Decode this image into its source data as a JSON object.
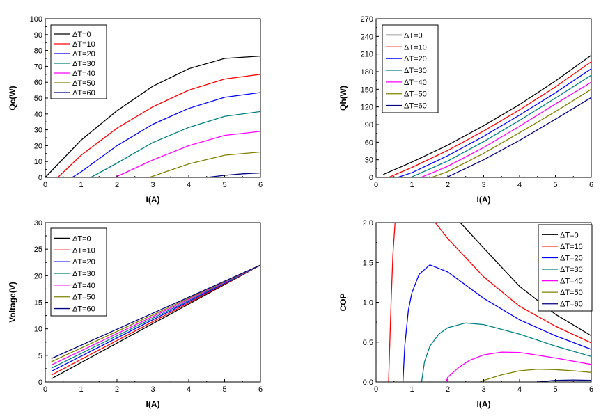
{
  "chart_data": [
    {
      "type": "line",
      "id": "qc",
      "xlabel": "I(A)",
      "ylabel": "Qc(W)",
      "xlim": [
        0,
        6
      ],
      "ylim": [
        0,
        100
      ],
      "xticks": [
        0,
        1,
        2,
        3,
        4,
        5,
        6
      ],
      "yticks": [
        0,
        10,
        20,
        30,
        40,
        50,
        60,
        70,
        80,
        90,
        100
      ],
      "legend_position": "top-left",
      "series": [
        {
          "name": "ΔT=0",
          "color": "#000000",
          "x": [
            0,
            1,
            2,
            3,
            4,
            5,
            6
          ],
          "y": [
            0,
            23.5,
            42,
            57.5,
            68.5,
            75,
            76.5
          ]
        },
        {
          "name": "ΔT=10",
          "color": "#ff0000",
          "x": [
            0.35,
            1,
            2,
            3,
            4,
            5,
            6
          ],
          "y": [
            0,
            14,
            31,
            44.5,
            55,
            62,
            65
          ]
        },
        {
          "name": "ΔT=20",
          "color": "#0000ff",
          "x": [
            0.75,
            1,
            2,
            3,
            4,
            5,
            6
          ],
          "y": [
            0,
            3.5,
            20,
            33.5,
            43.5,
            50.5,
            53.5
          ]
        },
        {
          "name": "ΔT=30",
          "color": "#008080",
          "x": [
            1.27,
            2,
            3,
            4,
            5,
            6
          ],
          "y": [
            0,
            9,
            22,
            31.5,
            38.5,
            41.5
          ]
        },
        {
          "name": "ΔT=40",
          "color": "#ff00ff",
          "x": [
            1.95,
            2,
            3,
            4,
            5,
            6
          ],
          "y": [
            0,
            0.6,
            11,
            20,
            26.5,
            29
          ]
        },
        {
          "name": "ΔT=50",
          "color": "#808000",
          "x": [
            2.9,
            3,
            4,
            5,
            6
          ],
          "y": [
            0,
            0.8,
            8.5,
            14,
            16
          ]
        },
        {
          "name": "ΔT=60",
          "color": "#000080",
          "x": [
            4.5,
            5,
            5.5,
            6
          ],
          "y": [
            0,
            1.3,
            2.3,
            2.8
          ]
        }
      ]
    },
    {
      "type": "line",
      "id": "qh",
      "xlabel": "I(A)",
      "ylabel": "Qh(W)",
      "xlim": [
        0,
        6
      ],
      "ylim": [
        0,
        270
      ],
      "xticks": [
        0,
        1,
        2,
        3,
        4,
        5,
        6
      ],
      "yticks": [
        0,
        30,
        60,
        90,
        120,
        150,
        180,
        210,
        240,
        270
      ],
      "legend_position": "top-left",
      "series": [
        {
          "name": "ΔT=0",
          "color": "#000000",
          "x": [
            0.2,
            1,
            2,
            3,
            4,
            5,
            6
          ],
          "y": [
            5,
            26,
            55,
            88,
            124,
            164,
            208
          ]
        },
        {
          "name": "ΔT=10",
          "color": "#ff0000",
          "x": [
            0.35,
            1,
            2,
            3,
            4,
            5,
            6
          ],
          "y": [
            0,
            17,
            46,
            79,
            115,
            154,
            197
          ]
        },
        {
          "name": "ΔT=20",
          "color": "#0000ff",
          "x": [
            0.6,
            1,
            2,
            3,
            4,
            5,
            6
          ],
          "y": [
            0,
            8,
            37,
            70,
            106,
            144,
            185
          ]
        },
        {
          "name": "ΔT=30",
          "color": "#008080",
          "x": [
            0.95,
            1,
            2,
            3,
            4,
            5,
            6
          ],
          "y": [
            0,
            1,
            28,
            61,
            97,
            135,
            174
          ]
        },
        {
          "name": "ΔT=40",
          "color": "#ff00ff",
          "x": [
            1.25,
            2,
            3,
            4,
            5,
            6
          ],
          "y": [
            0,
            19,
            51,
            87,
            125,
            162
          ]
        },
        {
          "name": "ΔT=50",
          "color": "#808000",
          "x": [
            1.55,
            2,
            3,
            4,
            5,
            6
          ],
          "y": [
            0,
            10,
            41,
            76,
            112,
            150
          ]
        },
        {
          "name": "ΔT=60",
          "color": "#000080",
          "x": [
            1.95,
            2,
            3,
            4,
            5,
            6
          ],
          "y": [
            0,
            1,
            30,
            63,
            99,
            136
          ]
        }
      ]
    },
    {
      "type": "line",
      "id": "voltage",
      "xlabel": "I(A)",
      "ylabel": "Voltage(V)",
      "xlim": [
        0,
        6
      ],
      "ylim": [
        0,
        30
      ],
      "xticks": [
        0,
        1,
        2,
        3,
        4,
        5,
        6
      ],
      "yticks": [
        0,
        5,
        10,
        15,
        20,
        25,
        30
      ],
      "legend_position": "top-left",
      "series": [
        {
          "name": "ΔT=0",
          "color": "#000000",
          "x": [
            0.17,
            6
          ],
          "y": [
            0.6,
            22
          ]
        },
        {
          "name": "ΔT=10",
          "color": "#ff0000",
          "x": [
            0.17,
            6
          ],
          "y": [
            1.3,
            22
          ]
        },
        {
          "name": "ΔT=20",
          "color": "#0000ff",
          "x": [
            0.17,
            6
          ],
          "y": [
            2.0,
            22
          ]
        },
        {
          "name": "ΔT=30",
          "color": "#008080",
          "x": [
            0.17,
            6
          ],
          "y": [
            2.6,
            22
          ]
        },
        {
          "name": "ΔT=40",
          "color": "#ff00ff",
          "x": [
            0.17,
            6
          ],
          "y": [
            3.2,
            22
          ]
        },
        {
          "name": "ΔT=50",
          "color": "#808000",
          "x": [
            0.17,
            6
          ],
          "y": [
            3.8,
            22
          ]
        },
        {
          "name": "ΔT=60",
          "color": "#000080",
          "x": [
            0.17,
            6
          ],
          "y": [
            4.4,
            22
          ]
        }
      ]
    },
    {
      "type": "line",
      "id": "cop",
      "xlabel": "I(A)",
      "ylabel": "COP",
      "xlim": [
        0,
        6
      ],
      "ylim": [
        0,
        2.0
      ],
      "xticks": [
        0,
        1,
        2,
        3,
        4,
        5,
        6
      ],
      "yticks": [
        0.0,
        0.5,
        1.0,
        1.5,
        2.0
      ],
      "legend_position": "top-right",
      "series": [
        {
          "name": "ΔT=0",
          "color": "#000000",
          "x": [
            2.35,
            3,
            4,
            5,
            6
          ],
          "y": [
            2.0,
            1.68,
            1.2,
            0.85,
            0.58
          ]
        },
        {
          "name": "ΔT=10",
          "color": "#ff0000",
          "x": [
            0.35,
            0.38,
            0.42,
            0.47,
            0.53
          ],
          "y": [
            0,
            0.45,
            1.0,
            1.6,
            2.0
          ]
        },
        {
          "name": "ΔT=10",
          "color": "#ff0000",
          "x": [
            1.65,
            2,
            3,
            4,
            5,
            6
          ],
          "y": [
            2.0,
            1.8,
            1.32,
            0.95,
            0.7,
            0.49
          ]
        },
        {
          "name": "ΔT=20",
          "color": "#0000ff",
          "x": [
            0.75,
            0.8,
            0.9,
            1.0,
            1.2,
            1.5,
            2,
            3,
            4,
            5,
            6
          ],
          "y": [
            0,
            0.45,
            0.9,
            1.12,
            1.35,
            1.47,
            1.38,
            1.05,
            0.78,
            0.58,
            0.41
          ]
        },
        {
          "name": "ΔT=30",
          "color": "#008080",
          "x": [
            1.27,
            1.35,
            1.5,
            1.75,
            2,
            2.5,
            3,
            4,
            5,
            6
          ],
          "y": [
            0,
            0.25,
            0.45,
            0.6,
            0.68,
            0.74,
            0.72,
            0.6,
            0.45,
            0.32
          ]
        },
        {
          "name": "ΔT=40",
          "color": "#ff00ff",
          "x": [
            1.95,
            2,
            2.3,
            2.6,
            3,
            3.5,
            4,
            5,
            6
          ],
          "y": [
            0,
            0.06,
            0.18,
            0.27,
            0.34,
            0.375,
            0.37,
            0.3,
            0.22
          ]
        },
        {
          "name": "ΔT=50",
          "color": "#808000",
          "x": [
            2.9,
            3,
            3.5,
            4,
            4.5,
            5,
            5.5,
            6
          ],
          "y": [
            0,
            0.02,
            0.09,
            0.14,
            0.16,
            0.155,
            0.14,
            0.12
          ]
        },
        {
          "name": "ΔT=60",
          "color": "#000080",
          "x": [
            4.5,
            5,
            5.5,
            6
          ],
          "y": [
            0,
            0.02,
            0.025,
            0.02
          ]
        }
      ]
    }
  ]
}
